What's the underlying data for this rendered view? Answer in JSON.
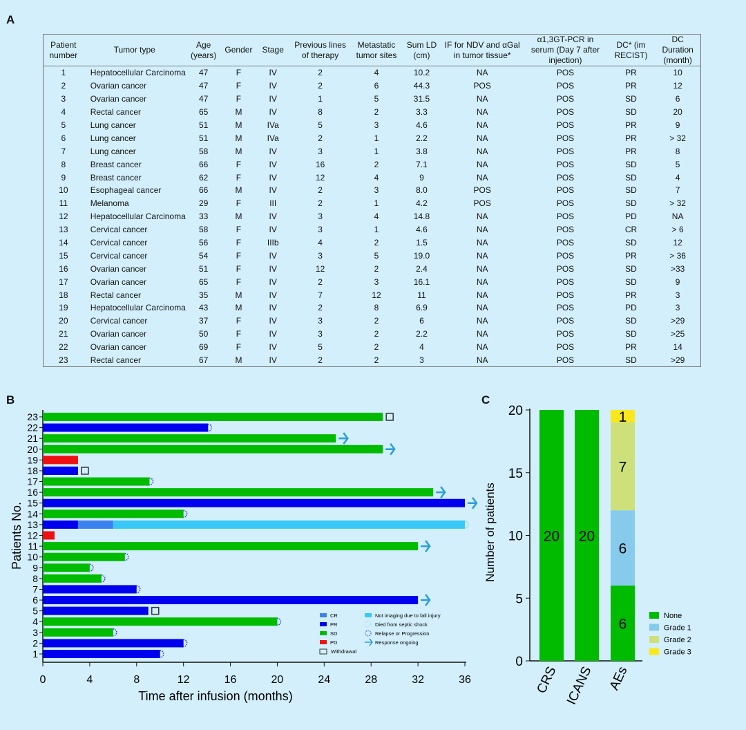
{
  "panels": {
    "a": "A",
    "b": "B",
    "c": "C"
  },
  "table": {
    "headers": [
      "Patient number",
      "Tumor type",
      "Age (years)",
      "Gender",
      "Stage",
      "Previous lines of therapy",
      "Metastatic tumor sites",
      "Sum LD (cm)",
      "IF for NDV and αGal in tumor tissue*",
      "α1,3GT-PCR in serum (Day 7 after injection)",
      "DC* (im RECIST)",
      "DC Duration (month)"
    ],
    "rows": [
      [
        "1",
        "Hepatocellular Carcinoma",
        "47",
        "F",
        "IV",
        "2",
        "4",
        "10.2",
        "NA",
        "POS",
        "PR",
        "10"
      ],
      [
        "2",
        "Ovarian cancer",
        "47",
        "F",
        "IV",
        "2",
        "6",
        "44.3",
        "POS",
        "POS",
        "PR",
        "12"
      ],
      [
        "3",
        "Ovarian cancer",
        "47",
        "F",
        "IV",
        "1",
        "5",
        "31.5",
        "NA",
        "POS",
        "SD",
        "6"
      ],
      [
        "4",
        "Rectal cancer",
        "65",
        "M",
        "IV",
        "8",
        "2",
        "3.3",
        "NA",
        "POS",
        "SD",
        "20"
      ],
      [
        "5",
        "Lung cancer",
        "51",
        "M",
        "IVa",
        "5",
        "3",
        "4.6",
        "NA",
        "POS",
        "PR",
        "9"
      ],
      [
        "6",
        "Lung cancer",
        "51",
        "M",
        "IVa",
        "2",
        "1",
        "2.2",
        "NA",
        "POS",
        "PR",
        "> 32"
      ],
      [
        "7",
        "Lung cancer",
        "58",
        "M",
        "IV",
        "3",
        "1",
        "3.8",
        "NA",
        "POS",
        "PR",
        "8"
      ],
      [
        "8",
        "Breast cancer",
        "66",
        "F",
        "IV",
        "16",
        "2",
        "7.1",
        "NA",
        "POS",
        "SD",
        "5"
      ],
      [
        "9",
        "Breast cancer",
        "62",
        "F",
        "IV",
        "12",
        "4",
        "9",
        "NA",
        "POS",
        "SD",
        "4"
      ],
      [
        "10",
        "Esophageal cancer",
        "66",
        "M",
        "IV",
        "2",
        "3",
        "8.0",
        "POS",
        "POS",
        "SD",
        "7"
      ],
      [
        "11",
        "Melanoma",
        "29",
        "F",
        "III",
        "2",
        "1",
        "4.2",
        "POS",
        "POS",
        "SD",
        "> 32"
      ],
      [
        "12",
        "Hepatocellular Carcinoma",
        "33",
        "M",
        "IV",
        "3",
        "4",
        "14.8",
        "NA",
        "POS",
        "PD",
        "NA"
      ],
      [
        "13",
        "Cervical cancer",
        "58",
        "F",
        "IV",
        "3",
        "1",
        "4.6",
        "NA",
        "POS",
        "CR",
        "> 6"
      ],
      [
        "14",
        "Cervical cancer",
        "56",
        "F",
        "IIIb",
        "4",
        "2",
        "1.5",
        "NA",
        "POS",
        "SD",
        "12"
      ],
      [
        "15",
        "Cervical cancer",
        "54",
        "F",
        "IV",
        "3",
        "5",
        "19.0",
        "NA",
        "POS",
        "PR",
        "> 36"
      ],
      [
        "16",
        "Ovarian cancer",
        "51",
        "F",
        "IV",
        "12",
        "2",
        "2.4",
        "NA",
        "POS",
        "SD",
        ">33"
      ],
      [
        "17",
        "Ovarian cancer",
        "65",
        "F",
        "IV",
        "2",
        "3",
        "16.1",
        "NA",
        "POS",
        "SD",
        "9"
      ],
      [
        "18",
        "Rectal cancer",
        "35",
        "M",
        "IV",
        "7",
        "12",
        "11",
        "NA",
        "POS",
        "PR",
        "3"
      ],
      [
        "19",
        "Hepatocellular Carcinoma",
        "43",
        "M",
        "IV",
        "2",
        "8",
        "6.9",
        "NA",
        "POS",
        "PD",
        "3"
      ],
      [
        "20",
        "Cervical cancer",
        "37",
        "F",
        "IV",
        "3",
        "2",
        "6",
        "NA",
        "POS",
        "SD",
        ">29"
      ],
      [
        "21",
        "Ovarian cancer",
        "50",
        "F",
        "IV",
        "3",
        "2",
        "2.2",
        "NA",
        "POS",
        "SD",
        ">25"
      ],
      [
        "22",
        "Ovarian cancer",
        "69",
        "F",
        "IV",
        "5",
        "2",
        "4",
        "NA",
        "POS",
        "PR",
        "14"
      ],
      [
        "23",
        "Rectal cancer",
        "67",
        "M",
        "IV",
        "2",
        "2",
        "3",
        "NA",
        "POS",
        "SD",
        ">29"
      ]
    ]
  },
  "chart_data": [
    {
      "type": "bar",
      "orientation": "horizontal",
      "xlabel": "Time after infusion (months)",
      "ylabel": "Patients No.",
      "xlim": [
        0,
        36
      ],
      "xticks": [
        0,
        4,
        8,
        12,
        16,
        20,
        24,
        28,
        32,
        36
      ],
      "colors": {
        "CR": "#3b82f0",
        "PR": "#0000ee",
        "SD": "#00bb00",
        "PD": "#ee1111",
        "Not imaging due to fall injury": "#38c8f5",
        "marker": "#2a9fd8"
      },
      "legend": [
        "CR",
        "PR",
        "SD",
        "PD",
        "Withdrawal",
        "Not imaging due to fall injury",
        "Died from septic shock",
        "Relapse or Progression",
        "Response ongoing"
      ],
      "patients": [
        {
          "id": "1",
          "segments": [
            [
              "PR",
              0,
              10
            ]
          ],
          "end": "Relapse or Progression"
        },
        {
          "id": "2",
          "segments": [
            [
              "PR",
              0,
              12
            ]
          ],
          "end": "Relapse or Progression"
        },
        {
          "id": "3",
          "segments": [
            [
              "SD",
              0,
              6
            ]
          ],
          "end": "Relapse or Progression"
        },
        {
          "id": "4",
          "segments": [
            [
              "SD",
              0,
              20
            ]
          ],
          "end": "Relapse or Progression"
        },
        {
          "id": "5",
          "segments": [
            [
              "PR",
              0,
              9
            ]
          ],
          "end": "Withdrawal"
        },
        {
          "id": "6",
          "segments": [
            [
              "PR",
              0,
              32
            ]
          ],
          "end": "Response ongoing"
        },
        {
          "id": "7",
          "segments": [
            [
              "PR",
              0,
              8
            ]
          ],
          "end": "Relapse or Progression"
        },
        {
          "id": "8",
          "segments": [
            [
              "SD",
              0,
              5
            ]
          ],
          "end": "Relapse or Progression"
        },
        {
          "id": "9",
          "segments": [
            [
              "SD",
              0,
              4
            ]
          ],
          "end": "Relapse or Progression"
        },
        {
          "id": "10",
          "segments": [
            [
              "SD",
              0,
              7
            ]
          ],
          "end": "Relapse or Progression"
        },
        {
          "id": "11",
          "segments": [
            [
              "SD",
              0,
              32
            ]
          ],
          "end": "Response ongoing"
        },
        {
          "id": "12",
          "segments": [
            [
              "PD",
              0,
              1
            ]
          ],
          "end": ""
        },
        {
          "id": "13",
          "segments": [
            [
              "PR",
              0,
              3
            ],
            [
              "CR",
              3,
              6
            ],
            [
              "Not imaging due to fall injury",
              6,
              36
            ]
          ],
          "end": "Died from septic shock"
        },
        {
          "id": "14",
          "segments": [
            [
              "SD",
              0,
              12
            ]
          ],
          "end": "Relapse or Progression"
        },
        {
          "id": "15",
          "segments": [
            [
              "PR",
              0,
              36
            ]
          ],
          "end": "Response ongoing"
        },
        {
          "id": "16",
          "segments": [
            [
              "SD",
              0,
              33.3
            ]
          ],
          "end": "Response ongoing"
        },
        {
          "id": "17",
          "segments": [
            [
              "SD",
              0,
              9.1
            ]
          ],
          "end": "Relapse or Progression"
        },
        {
          "id": "18",
          "segments": [
            [
              "PR",
              0,
              3
            ]
          ],
          "end": "Withdrawal"
        },
        {
          "id": "19",
          "segments": [
            [
              "PD",
              0,
              3
            ]
          ],
          "end": ""
        },
        {
          "id": "20",
          "segments": [
            [
              "SD",
              0,
              29
            ]
          ],
          "end": "Response ongoing"
        },
        {
          "id": "21",
          "segments": [
            [
              "SD",
              0,
              25
            ]
          ],
          "end": "Response ongoing"
        },
        {
          "id": "22",
          "segments": [
            [
              "PR",
              0,
              14.1
            ]
          ],
          "end": "Relapse or Progression"
        },
        {
          "id": "23",
          "segments": [
            [
              "SD",
              0,
              29
            ]
          ],
          "end": "Withdrawal"
        }
      ]
    },
    {
      "type": "bar",
      "stacked": true,
      "ylabel": "Number of patients",
      "ylim": [
        0,
        20
      ],
      "yticks": [
        0,
        5,
        10,
        15,
        20
      ],
      "categories": [
        "CRS",
        "ICANS",
        "AEs"
      ],
      "series": [
        {
          "name": "None",
          "color": "#00bb00",
          "values": [
            20,
            20,
            6
          ]
        },
        {
          "name": "Grade 1",
          "color": "#86cbec",
          "values": [
            0,
            0,
            6
          ]
        },
        {
          "name": "Grade 2",
          "color": "#cde07a",
          "values": [
            0,
            0,
            7
          ]
        },
        {
          "name": "Grade 3",
          "color": "#f8e81c",
          "values": [
            0,
            0,
            1
          ]
        }
      ]
    }
  ]
}
